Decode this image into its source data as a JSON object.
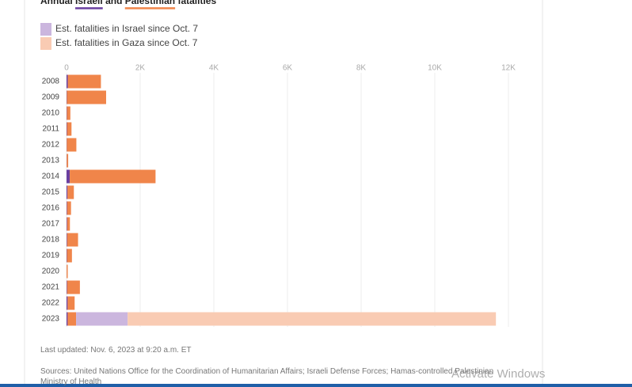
{
  "chart_data": {
    "type": "stacked-bar-horizontal",
    "title_parts": [
      "Annual",
      "and",
      "fatalities"
    ],
    "categories": [
      "2008",
      "2009",
      "2010",
      "2011",
      "2012",
      "2013",
      "2014",
      "2015",
      "2016",
      "2017",
      "2018",
      "2019",
      "2020",
      "2021",
      "2022",
      "2023"
    ],
    "series": [
      {
        "name": "Israeli",
        "color": "#6a3fa0",
        "values": [
          35,
          9,
          9,
          11,
          7,
          6,
          88,
          25,
          13,
          15,
          14,
          10,
          3,
          14,
          29,
          30
        ]
      },
      {
        "name": "Palestinian",
        "color": "#f0854a",
        "values": [
          899,
          1066,
          95,
          124,
          260,
          39,
          2329,
          174,
          109,
          77,
          299,
          137,
          30,
          349,
          191,
          230
        ]
      },
      {
        "name": "Est. fatalities in Israel since Oct. 7",
        "color": "#cbb6de",
        "values": [
          null,
          null,
          null,
          null,
          null,
          null,
          null,
          null,
          null,
          null,
          null,
          null,
          null,
          null,
          null,
          1400
        ]
      },
      {
        "name": "Est. fatalities in Gaza since Oct. 7",
        "color": "#f9cbb3",
        "values": [
          null,
          null,
          null,
          null,
          null,
          null,
          null,
          null,
          null,
          null,
          null,
          null,
          null,
          null,
          null,
          10000
        ]
      }
    ],
    "xlim": [
      0,
      12000
    ],
    "xticks": [
      0,
      {
        "value": 2000,
        "label": "2K"
      },
      {
        "value": 4000,
        "label": "4K"
      },
      {
        "value": 6000,
        "label": "6K"
      },
      {
        "value": 8000,
        "label": "8K"
      },
      {
        "value": 10000,
        "label": "10K"
      },
      {
        "value": 12000,
        "label": "12K"
      }
    ],
    "grid": true,
    "updated": "Last updated: Nov. 6, 2023 at 9:20 a.m. ET",
    "sources": "Sources: United Nations Office for the Coordination of Humanitarian Affairs; Israeli Defense Forces; Hamas-controlled Palestinian Ministry of Health",
    "watermark": "Activate Windows"
  }
}
